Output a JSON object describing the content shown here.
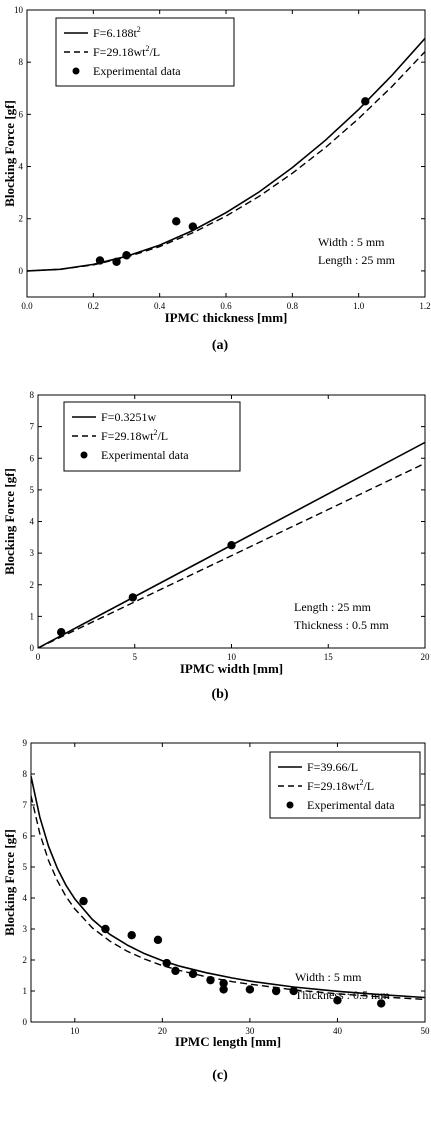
{
  "chart_data": [
    {
      "type": "line",
      "panel_label": "(a)",
      "xlabel": "IPMC thickness [mm]",
      "ylabel": "Blocking Force [gf]",
      "xlim": [
        0,
        1.2
      ],
      "ylim": [
        -1,
        10
      ],
      "xticks": [
        0.0,
        0.2,
        0.4,
        0.6,
        0.8,
        1.0,
        1.2
      ],
      "yticks": [
        0,
        2,
        4,
        6,
        8,
        10
      ],
      "x_tick_labels": [
        "0.0",
        "0.2",
        "0.4",
        "0.6",
        "0.8",
        "1.0",
        "1.2"
      ],
      "y_tick_labels": [
        "0",
        "2",
        "4",
        "6",
        "8",
        "10"
      ],
      "legend": [
        {
          "label": "F=6.188t",
          "sup": "2",
          "suffix": "",
          "style": "solid"
        },
        {
          "label": "F=29.18wt",
          "sup": "2",
          "suffix": "/L",
          "style": "dashed"
        },
        {
          "label": "Experimental data",
          "sup": "",
          "suffix": "",
          "style": "marker"
        }
      ],
      "annotations": [
        "Width : 5 mm",
        "Length : 25 mm"
      ],
      "series": [
        {
          "name": "F=6.188t²",
          "style": "solid",
          "x": [
            0,
            0.1,
            0.2,
            0.3,
            0.4,
            0.5,
            0.6,
            0.7,
            0.8,
            0.9,
            1.0,
            1.1,
            1.2
          ],
          "y": [
            0,
            0.06,
            0.25,
            0.56,
            0.99,
            1.55,
            2.23,
            3.03,
            3.96,
            5.01,
            6.19,
            7.49,
            8.91
          ]
        },
        {
          "name": "F=29.18wt²/L",
          "style": "dashed",
          "x": [
            0,
            0.1,
            0.2,
            0.3,
            0.4,
            0.5,
            0.6,
            0.7,
            0.8,
            0.9,
            1.0,
            1.1,
            1.2
          ],
          "y": [
            0,
            0.06,
            0.23,
            0.53,
            0.93,
            1.46,
            2.1,
            2.86,
            3.74,
            4.73,
            5.84,
            7.06,
            8.4
          ]
        },
        {
          "name": "Experimental data",
          "style": "marker",
          "x": [
            0.22,
            0.27,
            0.3,
            0.45,
            0.5,
            1.02
          ],
          "y": [
            0.4,
            0.35,
            0.6,
            1.9,
            1.7,
            6.5
          ]
        }
      ]
    },
    {
      "type": "line",
      "panel_label": "(b)",
      "xlabel": "IPMC width [mm]",
      "ylabel": "Blocking Force [gf]",
      "xlim": [
        0,
        20
      ],
      "ylim": [
        0,
        8
      ],
      "xticks": [
        0,
        5,
        10,
        15,
        20
      ],
      "yticks": [
        0,
        1,
        2,
        3,
        4,
        5,
        6,
        7,
        8
      ],
      "x_tick_labels": [
        "0",
        "5",
        "10",
        "15",
        "20"
      ],
      "y_tick_labels": [
        "0",
        "1",
        "2",
        "3",
        "4",
        "5",
        "6",
        "7",
        "8"
      ],
      "legend": [
        {
          "label": "F=0.3251w",
          "sup": "",
          "suffix": "",
          "style": "solid"
        },
        {
          "label": "F=29.18wt",
          "sup": "2",
          "suffix": "/L",
          "style": "dashed"
        },
        {
          "label": "Experimental data",
          "sup": "",
          "suffix": "",
          "style": "marker"
        }
      ],
      "annotations": [
        "Length : 25 mm",
        "Thickness : 0.5 mm"
      ],
      "series": [
        {
          "name": "F=0.3251w",
          "style": "solid",
          "x": [
            0,
            20
          ],
          "y": [
            0,
            6.5
          ]
        },
        {
          "name": "F=29.18wt²/L",
          "style": "dashed",
          "x": [
            0,
            20
          ],
          "y": [
            0,
            5.84
          ]
        },
        {
          "name": "Experimental data",
          "style": "marker",
          "x": [
            1.2,
            4.9,
            10
          ],
          "y": [
            0.5,
            1.6,
            3.25
          ]
        }
      ]
    },
    {
      "type": "line",
      "panel_label": "(c)",
      "xlabel": "IPMC length [mm]",
      "ylabel": "Blocking Force [gf]",
      "xlim": [
        5,
        50
      ],
      "ylim": [
        0,
        9
      ],
      "xticks": [
        10,
        20,
        30,
        40,
        50
      ],
      "yticks": [
        0,
        1,
        2,
        3,
        4,
        5,
        6,
        7,
        8,
        9
      ],
      "x_tick_labels": [
        "10",
        "20",
        "30",
        "40",
        "50"
      ],
      "y_tick_labels": [
        "0",
        "1",
        "2",
        "3",
        "4",
        "5",
        "6",
        "7",
        "8",
        "9"
      ],
      "legend": [
        {
          "label": "F=39.66/L",
          "sup": "",
          "suffix": "",
          "style": "solid"
        },
        {
          "label": "F=29.18wt",
          "sup": "2",
          "suffix": "/L",
          "style": "dashed"
        },
        {
          "label": "Experimental data",
          "sup": "",
          "suffix": "",
          "style": "marker"
        }
      ],
      "annotations": [
        "Width : 5 mm",
        "Thickness : 0.5 mm"
      ],
      "series": [
        {
          "name": "F=39.66/L",
          "style": "solid",
          "x": [
            5,
            6,
            7,
            8,
            9,
            10,
            12,
            14,
            16,
            18,
            20,
            22,
            25,
            28,
            30,
            35,
            40,
            45,
            50
          ],
          "y": [
            7.93,
            6.61,
            5.67,
            4.96,
            4.41,
            3.97,
            3.31,
            2.83,
            2.48,
            2.2,
            1.98,
            1.8,
            1.59,
            1.42,
            1.32,
            1.13,
            0.99,
            0.88,
            0.79
          ]
        },
        {
          "name": "F=29.18wt²/L",
          "style": "dashed",
          "x": [
            5,
            6,
            7,
            8,
            9,
            10,
            12,
            14,
            16,
            18,
            20,
            22,
            25,
            28,
            30,
            35,
            40,
            45,
            50
          ],
          "y": [
            7.3,
            6.08,
            5.21,
            4.56,
            4.05,
            3.65,
            3.04,
            2.61,
            2.28,
            2.03,
            1.82,
            1.66,
            1.46,
            1.3,
            1.22,
            1.04,
            0.91,
            0.81,
            0.73
          ]
        },
        {
          "name": "Experimental data",
          "style": "marker",
          "x": [
            11,
            13.5,
            16.5,
            19.5,
            20.5,
            21.5,
            23.5,
            25.5,
            27,
            27,
            30,
            33,
            35,
            40,
            45
          ],
          "y": [
            3.9,
            3.0,
            2.8,
            2.65,
            1.9,
            1.65,
            1.55,
            1.35,
            1.25,
            1.05,
            1.05,
            1.0,
            1.0,
            0.7,
            0.6
          ]
        }
      ]
    }
  ]
}
